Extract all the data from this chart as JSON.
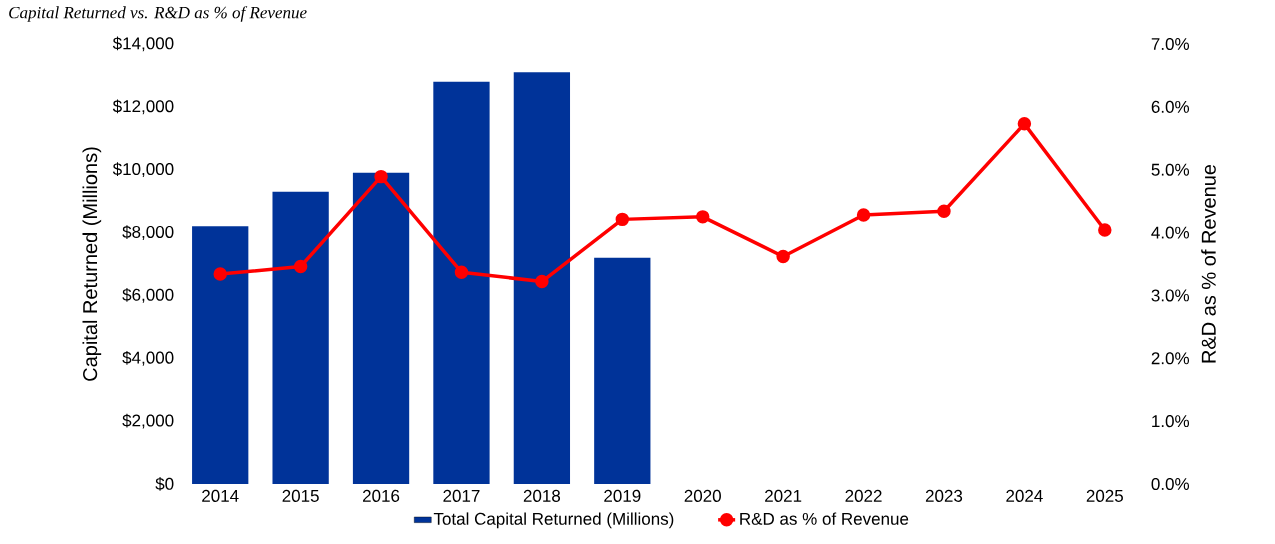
{
  "chart_data": {
    "type": "bar",
    "title": "Capital Returned vs. R&D as % of Revenue",
    "categories": [
      "2014",
      "2015",
      "2016",
      "2017",
      "2018",
      "2019",
      "2020",
      "2021",
      "2022",
      "2023",
      "2024",
      "2025"
    ],
    "series": [
      {
        "name": "Total Capital Returned (Millions)",
        "color": "#003399",
        "values": [
          8200,
          9300,
          9900,
          12800,
          13100,
          7200,
          null,
          null,
          null,
          null,
          null,
          null
        ]
      },
      {
        "name": "R&D as % of Revenue",
        "type": "line",
        "axis": "y2",
        "color": "#ff0000",
        "marker": "circle",
        "values": [
          3.34,
          3.46,
          4.89,
          3.37,
          3.22,
          4.21,
          4.25,
          3.62,
          4.28,
          4.34,
          5.73,
          4.04
        ]
      }
    ],
    "ylabel": "Capital Returned (Millions)",
    "y2label": "R&D as % of Revenue",
    "ylim": [
      0,
      14000
    ],
    "yticks": [
      {
        "value": 0,
        "label": "$0"
      },
      {
        "value": 2000,
        "label": "$2,000"
      },
      {
        "value": 4000,
        "label": "$4,000"
      },
      {
        "value": 6000,
        "label": "$6,000"
      },
      {
        "value": 8000,
        "label": "$8,000"
      },
      {
        "value": 10000,
        "label": "$10,000"
      },
      {
        "value": 12000,
        "label": "$12,000"
      },
      {
        "value": 14000,
        "label": "$14,000"
      }
    ],
    "y2lim": [
      0,
      7
    ],
    "y2ticks": [
      {
        "value": 0,
        "label": "0.0%"
      },
      {
        "value": 1,
        "label": "1.0%"
      },
      {
        "value": 2,
        "label": "2.0%"
      },
      {
        "value": 3,
        "label": "3.0%"
      },
      {
        "value": 4,
        "label": "4.0%"
      },
      {
        "value": 5,
        "label": "5.0%"
      },
      {
        "value": 6,
        "label": "6.0%"
      },
      {
        "value": 7,
        "label": "7.0%"
      }
    ],
    "legend": "bottom"
  }
}
